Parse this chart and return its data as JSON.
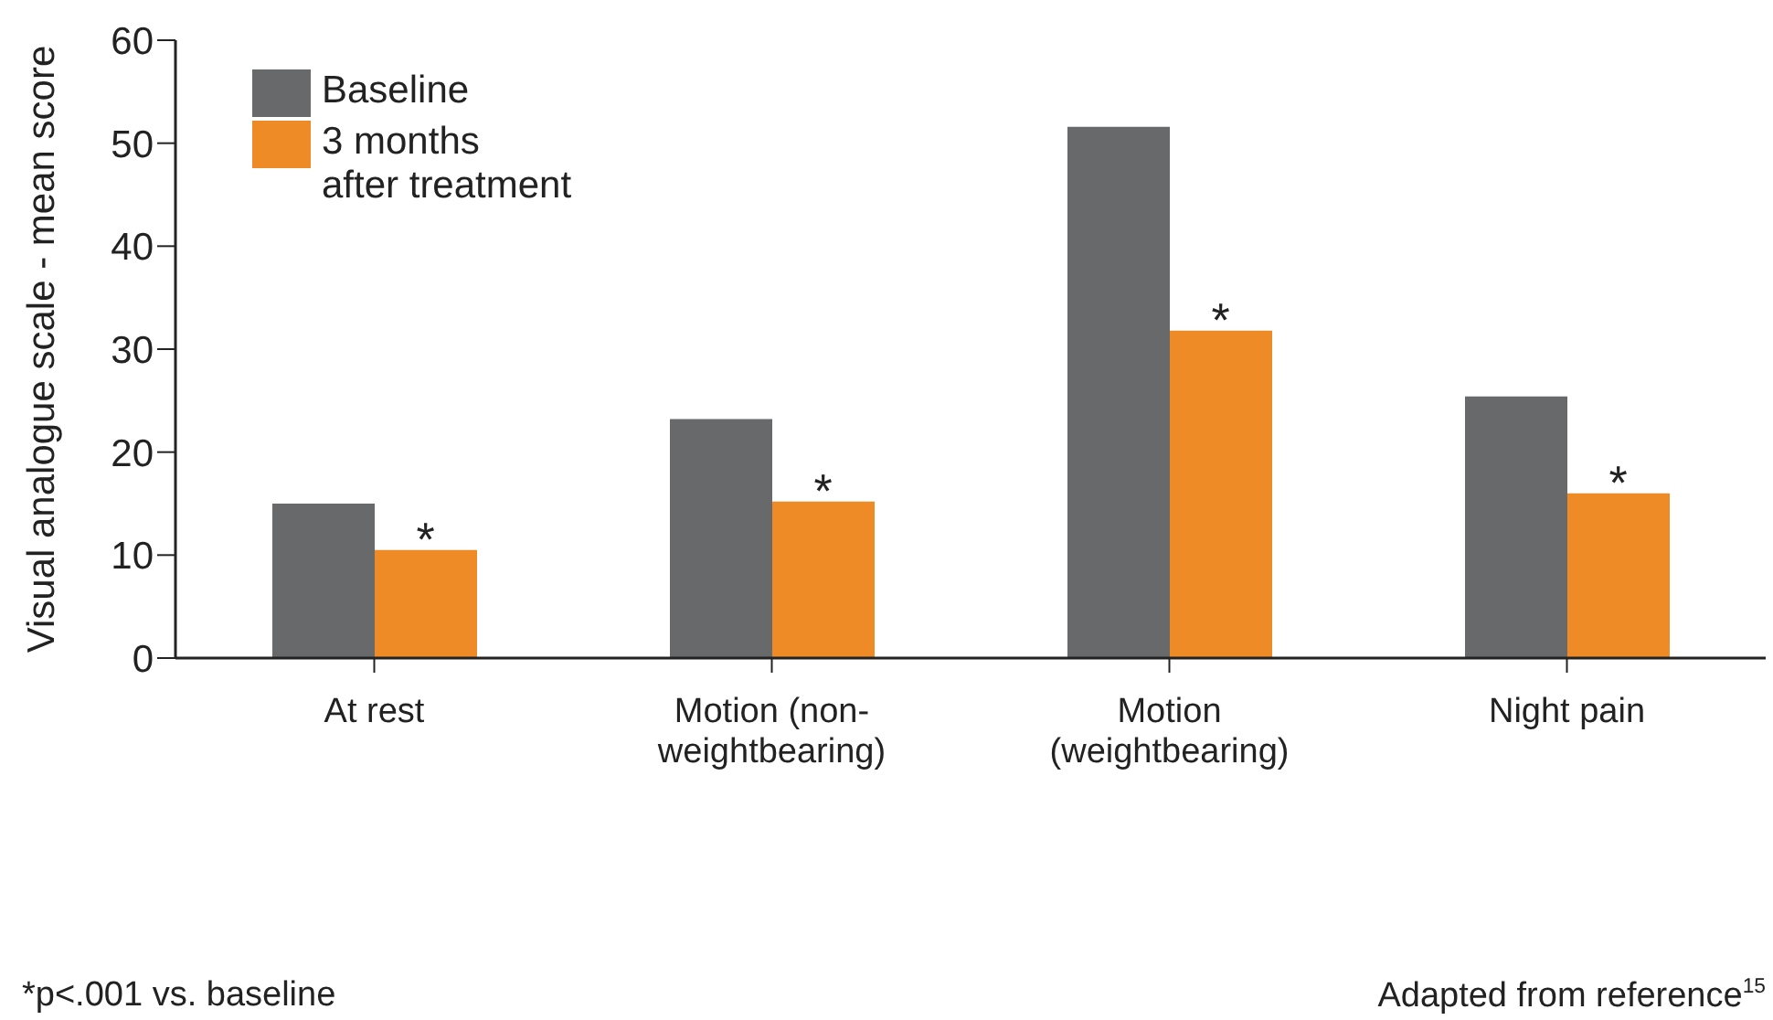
{
  "chart_data": {
    "type": "bar",
    "ylabel": "Visual analogue scale - mean score",
    "categories": [
      "At rest",
      "Motion (non-\nweightbearing)",
      "Motion\n(weightbearing)",
      "Night pain"
    ],
    "series": [
      {
        "name": "Baseline",
        "color": "#68696b",
        "values": [
          15,
          23.2,
          51.6,
          25.4
        ]
      },
      {
        "name": "3 months\nafter treatment",
        "color": "#ef8b26",
        "values": [
          10.5,
          15.2,
          31.8,
          16
        ]
      }
    ],
    "ylim": [
      0,
      60
    ],
    "yticks": [
      0,
      10,
      20,
      30,
      40,
      50,
      60
    ],
    "grid": false,
    "legend": "top left",
    "annotations": [
      {
        "text": "*",
        "x": "At rest",
        "y": 10.5
      },
      {
        "text": "*",
        "x": "Motion (non-\nweightbearing)",
        "y": 15.2
      },
      {
        "text": "*",
        "x": "Motion\n(weightbearing)",
        "y": 31.8
      },
      {
        "text": "*",
        "x": "Night pain",
        "y": 16
      },
      "*p<.001 vs. baseline",
      "Adapted from reference$^{15}$"
    ]
  }
}
